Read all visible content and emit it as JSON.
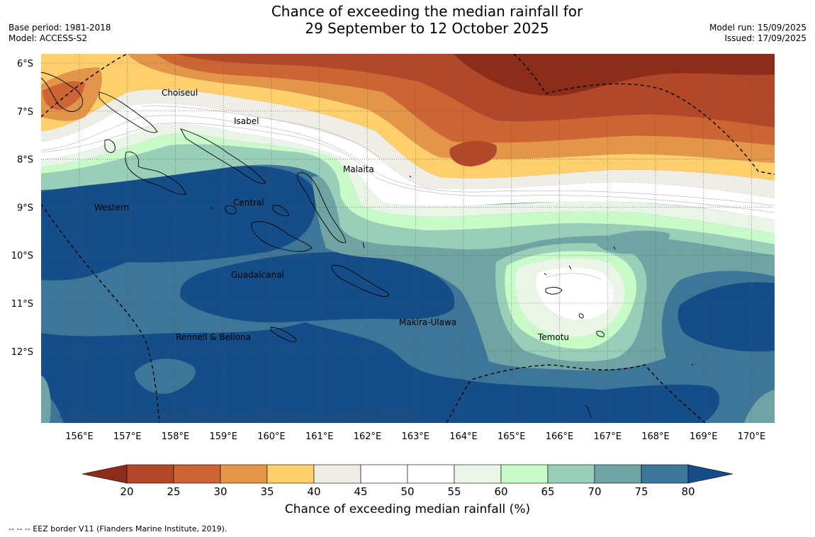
{
  "header": {
    "title_line1": "Chance of exceeding the median rainfall for",
    "title_line2": "29 September to 12 October 2025",
    "base_period": "Base period: 1981-2018",
    "model": "Model: ACCESS-S2",
    "model_run": "Model run: 15/09/2025",
    "issued": "Issued: 17/09/2025"
  },
  "map": {
    "lat_labels": [
      "6°S",
      "7°S",
      "8°S",
      "9°S",
      "10°S",
      "11°S",
      "12°S"
    ],
    "lon_labels": [
      "156°E",
      "157°E",
      "158°E",
      "159°E",
      "160°E",
      "161°E",
      "162°E",
      "163°E",
      "164°E",
      "165°E",
      "166°E",
      "167°E",
      "168°E",
      "169°E",
      "170°E"
    ],
    "provinces": [
      "Choiseul",
      "Isabel",
      "Malaita",
      "Western",
      "Central",
      "Guadalcanal",
      "Makira-Ulawa",
      "Rennell & Bellona",
      "Temotu"
    ],
    "copyright": "© Commonwealth of Australia 2025, Bureau of Meteorology, supported by COSPPac"
  },
  "colorbar": {
    "ticks": [
      "20",
      "25",
      "30",
      "35",
      "40",
      "45",
      "50",
      "55",
      "60",
      "65",
      "70",
      "75",
      "80"
    ],
    "colors": [
      "#8c2d1c",
      "#b2482a",
      "#cc6433",
      "#e39549",
      "#ffcf6b",
      "#efede5",
      "#ffffff",
      "#ffffff",
      "#eaf5e8",
      "#c8fbc8",
      "#99cfb8",
      "#6fa3a4",
      "#3d7699",
      "#144d88"
    ],
    "label": "Chance of exceeding median rainfall (%)"
  },
  "footnote": "--  --  -- EEZ border V11 (Flanders Marine Institute, 2019)."
}
